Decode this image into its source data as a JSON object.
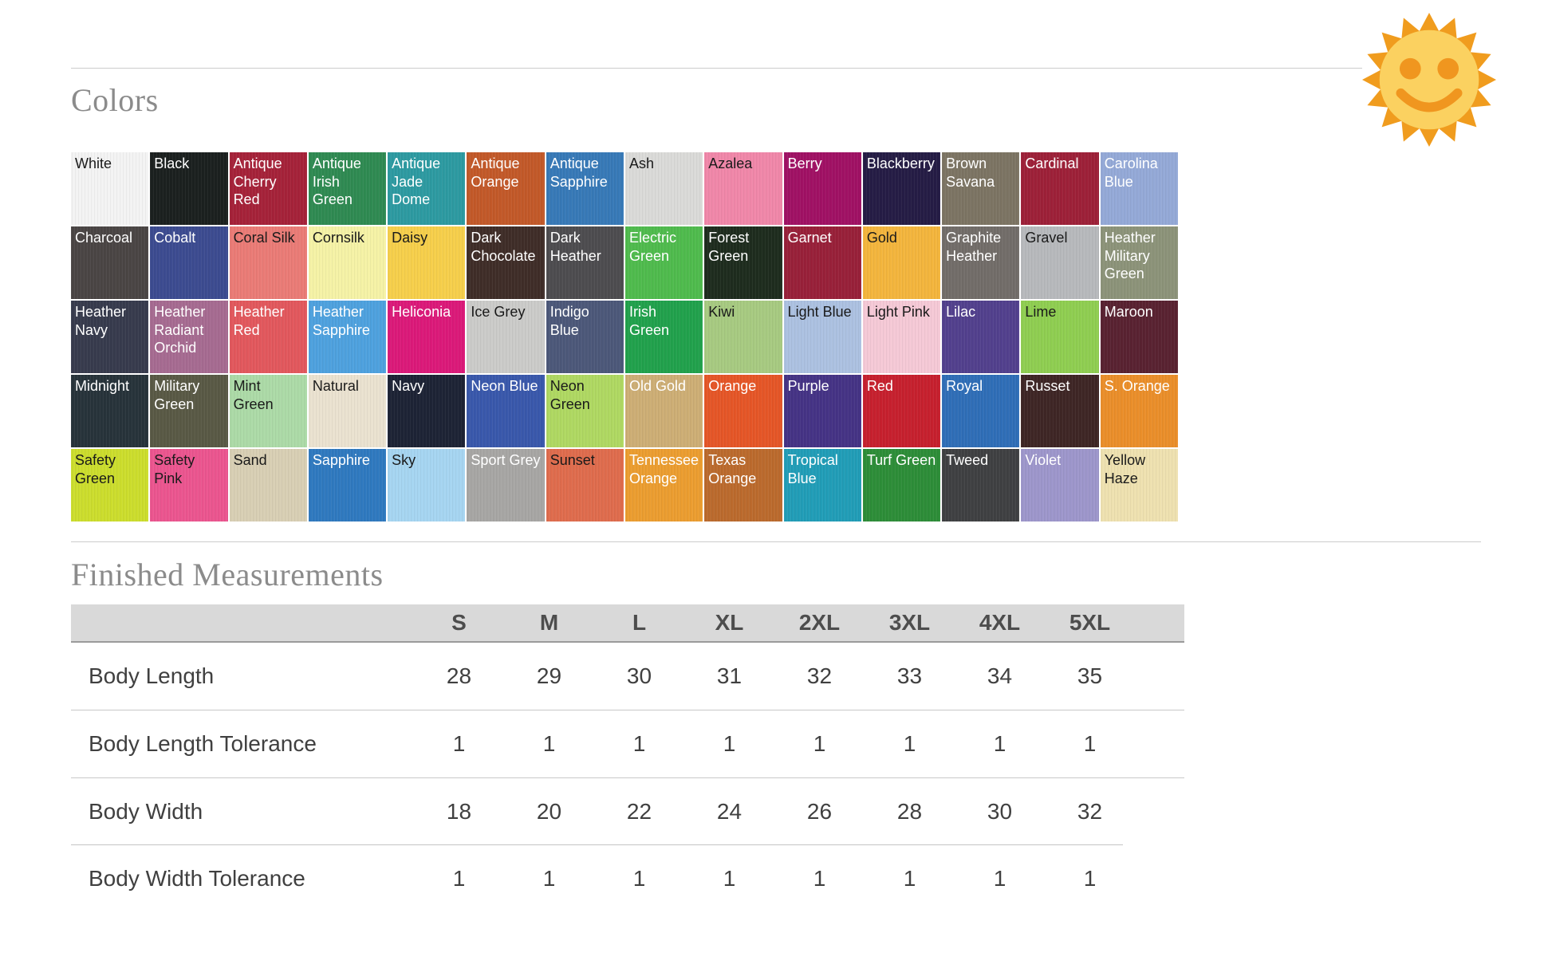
{
  "page": {
    "colors_heading": "Colors",
    "measurements_heading": "Finished Measurements"
  },
  "icons": {
    "sun": "sun-with-face-icon",
    "sun_ray_color": "#F09C1E",
    "sun_face_color": "#FBD160",
    "sun_feature_color": "#F0961F"
  },
  "colors": {
    "swatches": [
      {
        "name": "White",
        "bg": "#f3f3f3",
        "fg": "#1a1a1a"
      },
      {
        "name": "Black",
        "bg": "#1b201f",
        "fg": "#ffffff"
      },
      {
        "name": "Antique Cherry Red",
        "bg": "#a52239",
        "fg": "#ffffff"
      },
      {
        "name": "Antique Irish Green",
        "bg": "#2f8a52",
        "fg": "#ffffff"
      },
      {
        "name": "Antique Jade Dome",
        "bg": "#2d9aa1",
        "fg": "#ffffff"
      },
      {
        "name": "Antique Orange",
        "bg": "#c25929",
        "fg": "#ffffff"
      },
      {
        "name": "Antique Sapphire",
        "bg": "#3779b7",
        "fg": "#ffffff"
      },
      {
        "name": "Ash",
        "bg": "#dadad8",
        "fg": "#1a1a1a"
      },
      {
        "name": "Azalea",
        "bg": "#f087a9",
        "fg": "#1a1a1a"
      },
      {
        "name": "Berry",
        "bg": "#a01164",
        "fg": "#ffffff"
      },
      {
        "name": "Blackberry",
        "bg": "#251c45",
        "fg": "#ffffff"
      },
      {
        "name": "Brown Savana",
        "bg": "#7c7463",
        "fg": "#ffffff"
      },
      {
        "name": "Cardinal",
        "bg": "#9d2038",
        "fg": "#ffffff"
      },
      {
        "name": "Carolina Blue",
        "bg": "#94a9d7",
        "fg": "#ffffff"
      },
      {
        "name": "Charcoal",
        "bg": "#4a4544",
        "fg": "#ffffff"
      },
      {
        "name": "Cobalt",
        "bg": "#3c4b90",
        "fg": "#ffffff"
      },
      {
        "name": "Coral Silk",
        "bg": "#ea7b76",
        "fg": "#1a1a1a"
      },
      {
        "name": "Cornsilk",
        "bg": "#f5f2a6",
        "fg": "#1a1a1a"
      },
      {
        "name": "Daisy",
        "bg": "#f6cf4b",
        "fg": "#1a1a1a"
      },
      {
        "name": "Dark Chocolate",
        "bg": "#3f2d28",
        "fg": "#ffffff"
      },
      {
        "name": "Dark Heather",
        "bg": "#4d4c4f",
        "fg": "#ffffff"
      },
      {
        "name": "Electric Green",
        "bg": "#4fbb4d",
        "fg": "#ffffff"
      },
      {
        "name": "Forest Green",
        "bg": "#1e2c1e",
        "fg": "#ffffff"
      },
      {
        "name": "Garnet",
        "bg": "#982039",
        "fg": "#ffffff"
      },
      {
        "name": "Gold",
        "bg": "#f3b53d",
        "fg": "#1a1a1a"
      },
      {
        "name": "Graphite Heather",
        "bg": "#726d69",
        "fg": "#ffffff"
      },
      {
        "name": "Gravel",
        "bg": "#b7b9bc",
        "fg": "#1a1a1a"
      },
      {
        "name": "Heather Military Green",
        "bg": "#8c9379",
        "fg": "#ffffff"
      },
      {
        "name": "Heather Navy",
        "bg": "#373b4d",
        "fg": "#ffffff"
      },
      {
        "name": "Heather Radiant Orchid",
        "bg": "#a66b91",
        "fg": "#ffffff"
      },
      {
        "name": "Heather Red",
        "bg": "#e2585d",
        "fg": "#ffffff"
      },
      {
        "name": "Heather Sapphire",
        "bg": "#4ea1de",
        "fg": "#ffffff"
      },
      {
        "name": "Heliconia",
        "bg": "#db1979",
        "fg": "#ffffff"
      },
      {
        "name": "Ice Grey",
        "bg": "#cbcbc9",
        "fg": "#1a1a1a"
      },
      {
        "name": "Indigo Blue",
        "bg": "#4c5879",
        "fg": "#ffffff"
      },
      {
        "name": "Irish Green",
        "bg": "#21a14c",
        "fg": "#ffffff"
      },
      {
        "name": "Kiwi",
        "bg": "#a7ca81",
        "fg": "#1a1a1a"
      },
      {
        "name": "Light Blue",
        "bg": "#acc1e1",
        "fg": "#1a1a1a"
      },
      {
        "name": "Light Pink",
        "bg": "#f5c9d6",
        "fg": "#1a1a1a"
      },
      {
        "name": "Lilac",
        "bg": "#52408d",
        "fg": "#ffffff"
      },
      {
        "name": "Lime",
        "bg": "#8fce51",
        "fg": "#1a1a1a"
      },
      {
        "name": "Maroon",
        "bg": "#592231",
        "fg": "#ffffff"
      },
      {
        "name": "Midnight",
        "bg": "#27333a",
        "fg": "#ffffff"
      },
      {
        "name": "Military Green",
        "bg": "#595945",
        "fg": "#ffffff"
      },
      {
        "name": "Mint Green",
        "bg": "#acdaa7",
        "fg": "#1a1a1a"
      },
      {
        "name": "Natural",
        "bg": "#eae2d0",
        "fg": "#1a1a1a"
      },
      {
        "name": "Navy",
        "bg": "#1d2335",
        "fg": "#ffffff"
      },
      {
        "name": "Neon Blue",
        "bg": "#3958ab",
        "fg": "#ffffff"
      },
      {
        "name": "Neon Green",
        "bg": "#afd862",
        "fg": "#1a1a1a"
      },
      {
        "name": "Old Gold",
        "bg": "#cdae75",
        "fg": "#ffffff"
      },
      {
        "name": "Orange",
        "bg": "#e55627",
        "fg": "#ffffff"
      },
      {
        "name": "Purple",
        "bg": "#453385",
        "fg": "#ffffff"
      },
      {
        "name": "Red",
        "bg": "#c6202e",
        "fg": "#ffffff"
      },
      {
        "name": "Royal",
        "bg": "#2f6eb7",
        "fg": "#ffffff"
      },
      {
        "name": "Russet",
        "bg": "#3e2625",
        "fg": "#ffffff"
      },
      {
        "name": "S. Orange",
        "bg": "#ea8e2a",
        "fg": "#ffffff"
      },
      {
        "name": "Safety Green",
        "bg": "#ccdd2d",
        "fg": "#1a1a1a"
      },
      {
        "name": "Safety Pink",
        "bg": "#eb558f",
        "fg": "#1a1a1a"
      },
      {
        "name": "Sand",
        "bg": "#d8cfb4",
        "fg": "#1a1a1a"
      },
      {
        "name": "Sapphire",
        "bg": "#2f79bf",
        "fg": "#ffffff"
      },
      {
        "name": "Sky",
        "bg": "#a6d5f1",
        "fg": "#1a1a1a"
      },
      {
        "name": "Sport Grey",
        "bg": "#a7a6a4",
        "fg": "#ffffff"
      },
      {
        "name": "Sunset",
        "bg": "#df6c4d",
        "fg": "#1a1a1a"
      },
      {
        "name": "Tennessee Orange",
        "bg": "#eb9d30",
        "fg": "#ffffff"
      },
      {
        "name": "Texas Orange",
        "bg": "#bb6a2d",
        "fg": "#ffffff"
      },
      {
        "name": "Tropical Blue",
        "bg": "#219db7",
        "fg": "#ffffff"
      },
      {
        "name": "Turf Green",
        "bg": "#2d8d38",
        "fg": "#ffffff"
      },
      {
        "name": "Tweed",
        "bg": "#3f4042",
        "fg": "#ffffff"
      },
      {
        "name": "Violet",
        "bg": "#9d96cb",
        "fg": "#ffffff"
      },
      {
        "name": "Yellow Haze",
        "bg": "#eee1b0",
        "fg": "#1a1a1a"
      }
    ]
  },
  "measurements": {
    "sizes": [
      "S",
      "M",
      "L",
      "XL",
      "2XL",
      "3XL",
      "4XL",
      "5XL"
    ],
    "rows": [
      {
        "label": "Body Length",
        "values": [
          "28",
          "29",
          "30",
          "31",
          "32",
          "33",
          "34",
          "35"
        ]
      },
      {
        "label": "Body Length Tolerance",
        "values": [
          "1",
          "1",
          "1",
          "1",
          "1",
          "1",
          "1",
          "1"
        ]
      },
      {
        "label": "Body Width",
        "values": [
          "18",
          "20",
          "22",
          "24",
          "26",
          "28",
          "30",
          "32"
        ]
      },
      {
        "label": "Body Width Tolerance",
        "values": [
          "1",
          "1",
          "1",
          "1",
          "1",
          "1",
          "1",
          "1"
        ]
      }
    ]
  }
}
